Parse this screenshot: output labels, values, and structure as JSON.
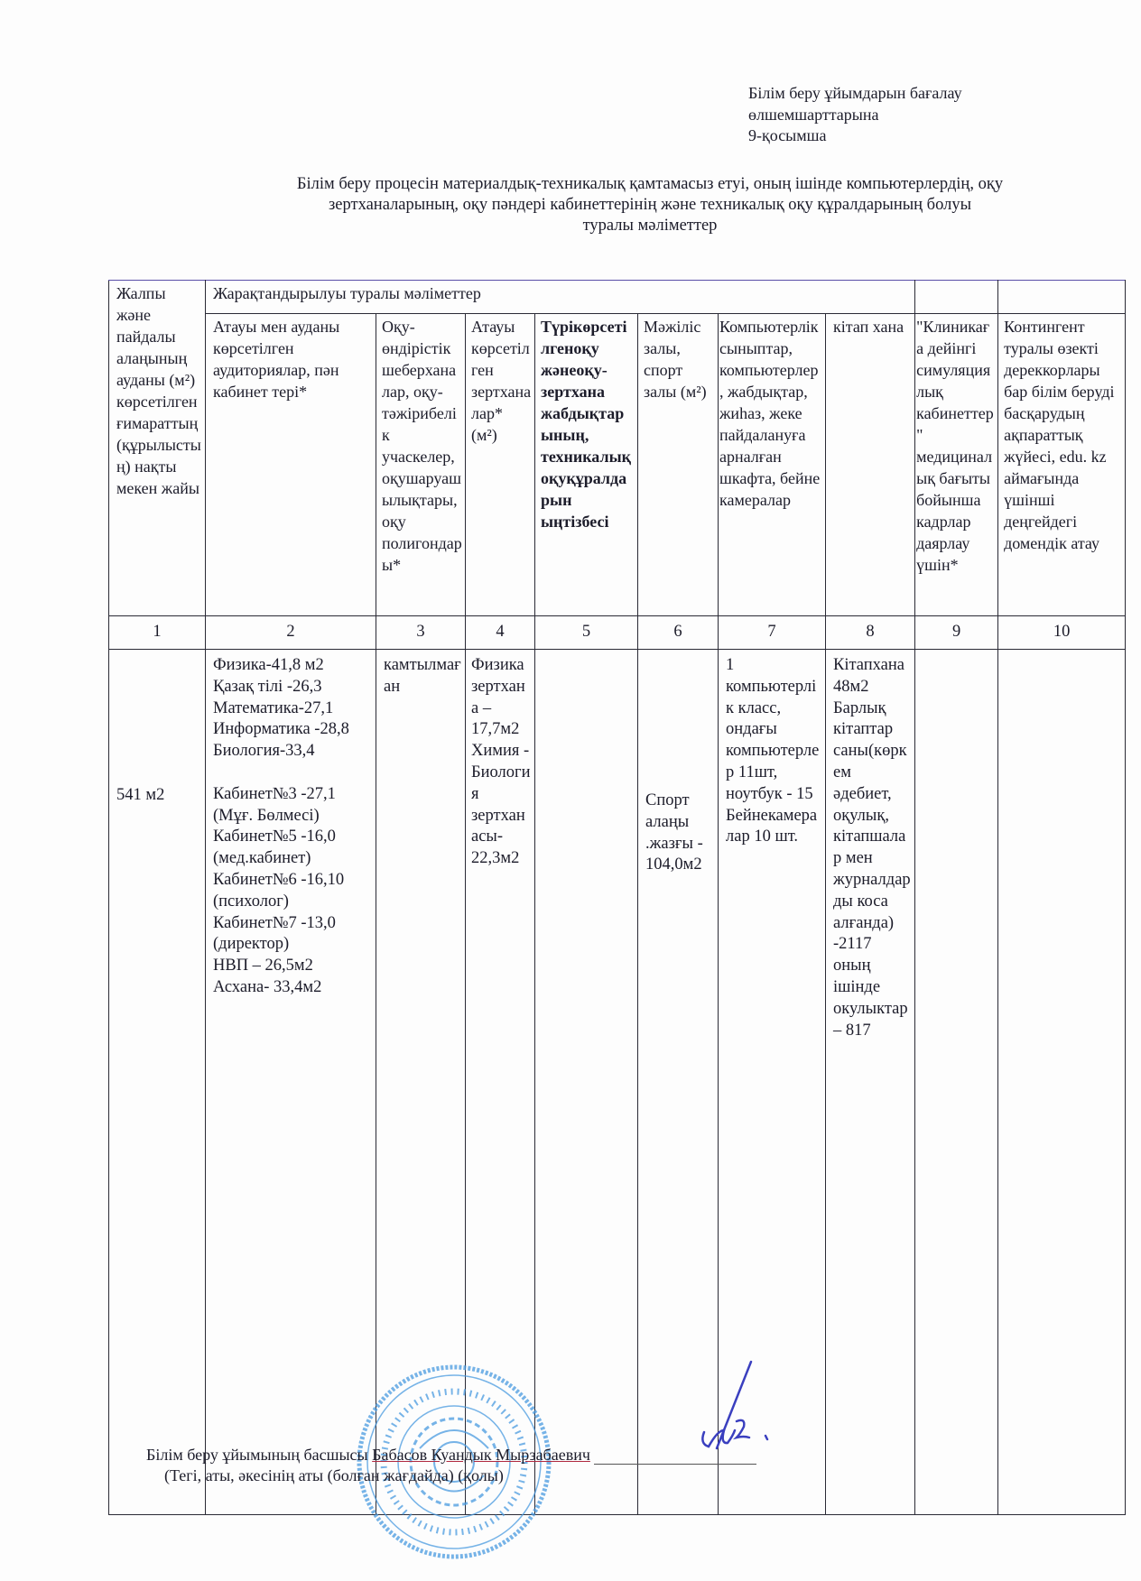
{
  "appendix": {
    "line1": "Білім беру ұйымдарын бағалау",
    "line2": "өлшемшарттарына",
    "line3": "9-қосымша"
  },
  "title": {
    "line1": "Білім беру процесін материалдық-техникалық қамтамасыз етуі, оның ішінде компьютерлердің, оқу",
    "line2": "зертханаларының, оқу пәндері кабинеттерінің және техникалық оқу құралдарының болуы",
    "line3": "туралы мәліметтер"
  },
  "table": {
    "col1_header": "Жалпы және пайдалы алаңының ауданы (м²) көрсетілген ғимараттың (құрылыстың) нақты мекен жайы",
    "group_header": "Жарақтандырылуы туралы мәліметтер",
    "headers": [
      "Атауы мен ауданы көрсетілген аудиториялар, пән кабинет тері*",
      "Оқу-өндірістік шеберханалар, оқу-тәжірибелік учаскелер, оқушаруашылықтары, оқу полигондары*",
      "Атауы көрсетілген зертханалар* (м²)",
      "Түрікөрсетілгеноқу жәнеоқу-зертхана жабдықтарының, техникалықоқуқұралдарын ыңтізбесі",
      "Мәжіліс залы, спорт залы (м²)",
      "Компьютерлік сыныптар, компьютерлер, жабдықтар, жиһаз, жеке пайдалануға арналған шкафта, бейне камералар",
      "кітап хана",
      "\"Клиникаға дейінгі симуляциялық кабинеттер\" медициналық бағыты бойынша кадрлар даярлау үшін*",
      "Контингент туралы өзекті дереккорлары бар білім беруді басқарудың ақпараттық жүйесі, edu. kz аймағында үшінші деңгейдегі домендік атау"
    ],
    "numbers": [
      "1",
      "2",
      "3",
      "4",
      "5",
      "6",
      "7",
      "8",
      "9",
      "10"
    ],
    "row": {
      "c1": "541 м2",
      "c2": "Физика-41,8 м2\nҚазақ тілі -26,3\nМатематика-27,1\nИнформатика -28,8\nБиология-33,4\n\nКабинет№3 -27,1\n(Мұғ. Бөлмесі)\nКабинет№5 -16,0\n(мед.кабинет)\nКабинет№6 -16,10\n(психолог)\nКабинет№7 -13,0\n(директор)\nНВП – 26,5м2\nАсхана- 33,4м2",
      "c3": "камтылмаған",
      "c4": "Физика зертхана – 17,7м2 Химия - Биология зертханасы- 22,3м2",
      "c5": "",
      "c6": "Спорт алаңы .жазғы - 104,0м2",
      "c7": "1 компьютерлік класс, ондағы компьютерлер 11шт, ноутбук - 15 Бейнекамералар 10 шт.",
      "c8": "Кітапхана 48м2 Барлық кітаптар саны(көркем әдебиет, оқулық, кітапшалар мен журналдарды коса алғанда) -2117 оның ішінде окулыктар – 817",
      "c9": "",
      "c10": ""
    }
  },
  "footer": {
    "role": "Білім беру ұйымының басшысы",
    "name": "Бабасов Куандык Мырзабаевич",
    "caption": "(Тегі, аты, әкесінің аты (болған жағдайда) (қолы)"
  },
  "stamp": {
    "color": "#4a9be0"
  },
  "signature": {
    "color": "#3a3fbf"
  }
}
